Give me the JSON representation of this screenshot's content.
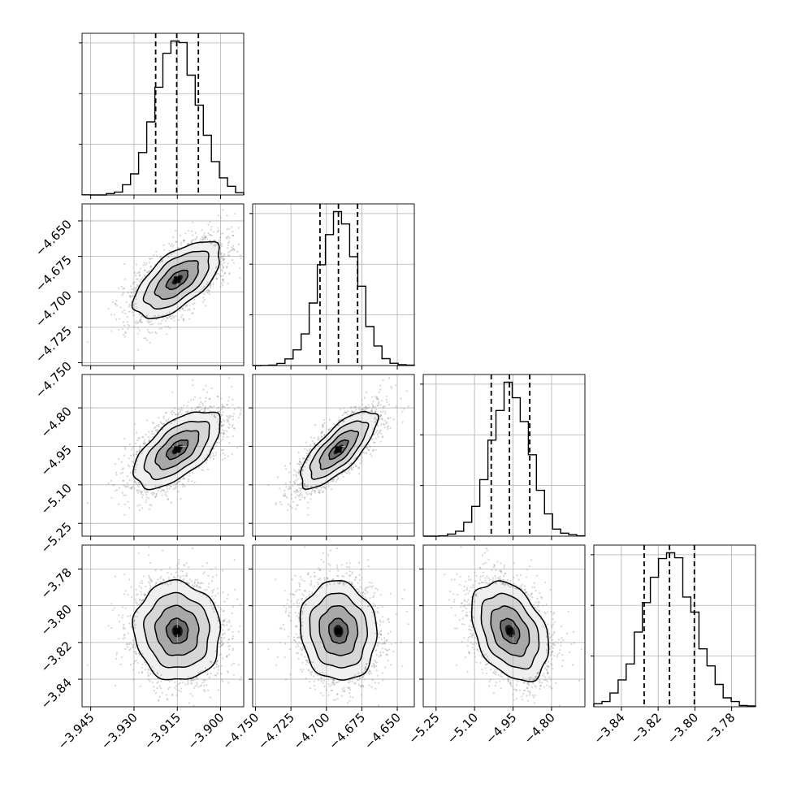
{
  "chart_data": {
    "type": "corner",
    "title": "",
    "n_params": 4,
    "param_labels": [
      "",
      "",
      "",
      ""
    ],
    "params": [
      {
        "range": [
          -3.948,
          -3.892
        ],
        "ticks": [
          -3.945,
          -3.93,
          -3.915,
          -3.9
        ],
        "tick_labels": [
          "−3.945",
          "−3.930",
          "−3.915",
          "−3.900"
        ],
        "quantiles": [
          -3.9225,
          -3.9152,
          -3.9077
        ],
        "mean": -3.915,
        "sd": 0.0075
      },
      {
        "range": [
          -4.752,
          -4.638
        ],
        "ticks": [
          -4.75,
          -4.725,
          -4.7,
          -4.675,
          -4.65
        ],
        "tick_labels": [
          "−4.750",
          "−4.725",
          "−4.700",
          "−4.675",
          "−4.650"
        ],
        "quantiles": [
          -4.7045,
          -4.6915,
          -4.678
        ],
        "mean": -4.6915,
        "sd": 0.0135
      },
      {
        "range": [
          -5.3,
          -4.67
        ],
        "ticks": [
          -5.25,
          -5.1,
          -4.95,
          -4.8
        ],
        "tick_labels": [
          "−5.25",
          "−5.10",
          "−4.95",
          "−4.80"
        ],
        "quantiles": [
          -5.035,
          -4.964,
          -4.885
        ],
        "mean": -4.962,
        "sd": 0.075
      },
      {
        "range": [
          -3.855,
          -3.767
        ],
        "ticks": [
          -3.84,
          -3.82,
          -3.8,
          -3.78
        ],
        "tick_labels": [
          "−3.84",
          "−3.82",
          "−3.80",
          "−3.78"
        ],
        "quantiles": [
          -3.8276,
          -3.8138,
          -3.8003
        ],
        "mean": -3.8138,
        "sd": 0.0135
      }
    ],
    "correlations": {
      "1_0": 0.62,
      "2_0": 0.6,
      "2_1": 0.75,
      "3_0": -0.05,
      "3_1": -0.08,
      "3_2": -0.35
    },
    "histogram": {
      "bins": 20,
      "histtype": "step",
      "color": "#000000"
    },
    "contour_levels_sigma": [
      0.5,
      1.0,
      1.5,
      2.0
    ],
    "quantile_line_style": "dashed",
    "grid": true,
    "legend": "none"
  }
}
